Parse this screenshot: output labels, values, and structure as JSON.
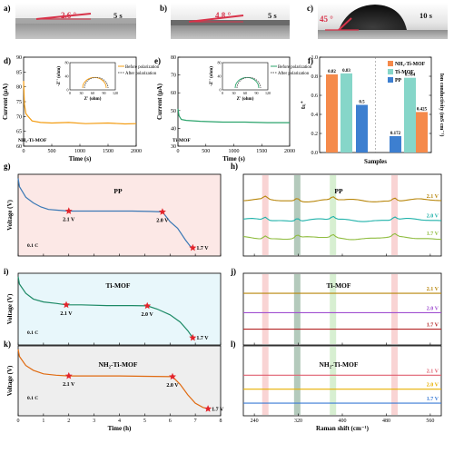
{
  "panels": {
    "a": {
      "label": "a)",
      "angle": "2.6 °",
      "time": "5 s"
    },
    "b": {
      "label": "b)",
      "angle": "4.8 °",
      "time": "5 s"
    },
    "c": {
      "label": "c)",
      "angle": "45 °",
      "time": "10 s"
    },
    "d": {
      "label": "d)",
      "tag": "NH₂-Ti-MOF"
    },
    "e": {
      "label": "e)",
      "tag": "Ti-MOF"
    },
    "f": {
      "label": "f)"
    },
    "g": {
      "label": "g)",
      "title": "PP",
      "note": "0.1 C"
    },
    "h": {
      "label": "h)",
      "title": "PP"
    },
    "i": {
      "label": "i)",
      "title": "Ti-MOF",
      "note": "0.1 C"
    },
    "j": {
      "label": "j)",
      "title": "Ti-MOF"
    },
    "k": {
      "label": "k)",
      "title": "NH₂-Ti-MOF",
      "note": "0.1 C"
    },
    "l": {
      "label": "l)",
      "title": "NH₂-Ti-MOF"
    }
  },
  "inset_legend": {
    "before": "Before polarization",
    "after": "After polarization",
    "xlabel": "Z' (ohm)",
    "ylabel": "-Z'' (ohm)",
    "xticks": [
      "0",
      "30",
      "60",
      "90",
      "120"
    ],
    "yticks": [
      "0",
      "40",
      "80"
    ]
  },
  "chart_data": [
    {
      "panel": "d",
      "type": "line",
      "xlabel": "Time (s)",
      "ylabel": "Current (µA)",
      "xlim": [
        0,
        2000
      ],
      "ylim": [
        60,
        90
      ],
      "xticks": [
        "0",
        "500",
        "1000",
        "1500",
        "2000"
      ],
      "yticks": [
        "60",
        "65",
        "70",
        "75",
        "80",
        "85",
        "90"
      ],
      "series": [
        {
          "color": "#f39c12",
          "x": [
            0,
            15,
            40,
            80,
            150,
            300,
            500,
            800,
            1100,
            1500,
            1800,
            2000
          ],
          "y": [
            82,
            74,
            71,
            70,
            68.5,
            68,
            67.8,
            68,
            67.6,
            67.8,
            67.5,
            67.6
          ]
        }
      ]
    },
    {
      "panel": "e",
      "type": "line",
      "xlabel": "Time (s)",
      "ylabel": "Current (µA)",
      "xlim": [
        0,
        2000
      ],
      "ylim": [
        30,
        80
      ],
      "xticks": [
        "0",
        "500",
        "1000",
        "1500",
        "2000"
      ],
      "yticks": [
        "30",
        "40",
        "50",
        "60",
        "70",
        "80"
      ],
      "series": [
        {
          "color": "#2aa36b",
          "x": [
            0,
            20,
            60,
            150,
            400,
            800,
            1200,
            1600,
            2000
          ],
          "y": [
            51,
            47,
            45,
            44.5,
            44,
            43.5,
            43.5,
            43.2,
            43.2
          ]
        }
      ]
    },
    {
      "panel": "f",
      "type": "bar",
      "xlabel": "Samples",
      "ylabel": "tₗᵢ⁺",
      "ylabel2": "Ion conductivity (mS cm⁻¹)",
      "ylim": [
        0,
        1.0
      ],
      "yticks": [
        "0.0",
        "0.2",
        "0.4",
        "0.6",
        "0.8",
        "1.0"
      ],
      "legend": [
        "NH₂-Ti-MOF",
        "Ti-MOF",
        "PP"
      ],
      "colors": [
        "#f58a4b",
        "#86d6c9",
        "#3d7fd0"
      ],
      "values": [
        0.82,
        0.83,
        0.5,
        0.172,
        0.784,
        0.425
      ],
      "value_labels": [
        "0.82",
        "0.83",
        "0.5",
        "0.172",
        "0.784",
        "0.425"
      ]
    },
    {
      "panel": "g",
      "type": "line",
      "xlim": [
        0,
        8
      ],
      "ylabel": "Voltage (V)",
      "color": "#3a78b5",
      "x": [
        0,
        0.05,
        0.3,
        0.6,
        0.9,
        1.2,
        1.6,
        2.0,
        2.6,
        3.5,
        4.5,
        5.2,
        5.7,
        5.8,
        6.0,
        6.3,
        6.6,
        6.8,
        6.9
      ],
      "y": [
        0.95,
        0.85,
        0.72,
        0.65,
        0.6,
        0.57,
        0.56,
        0.55,
        0.55,
        0.55,
        0.55,
        0.545,
        0.54,
        0.5,
        0.42,
        0.34,
        0.2,
        0.12,
        0.1
      ],
      "stars": [
        {
          "x": 2.0,
          "y": 0.55,
          "label": "2.1 V"
        },
        {
          "x": 5.7,
          "y": 0.54,
          "label": "2.0 V"
        },
        {
          "x": 6.9,
          "y": 0.1,
          "label": "1.7 V"
        }
      ]
    },
    {
      "panel": "i",
      "type": "line",
      "xlim": [
        0,
        8
      ],
      "ylabel": "Voltage (V)",
      "color": "#1d8a66",
      "x": [
        0,
        0.05,
        0.3,
        0.6,
        1.0,
        1.5,
        1.9,
        2.5,
        3.5,
        4.5,
        5.1,
        5.5,
        6.0,
        6.4,
        6.7,
        6.9
      ],
      "y": [
        0.95,
        0.85,
        0.72,
        0.64,
        0.6,
        0.58,
        0.56,
        0.56,
        0.55,
        0.55,
        0.545,
        0.5,
        0.42,
        0.32,
        0.2,
        0.1
      ],
      "stars": [
        {
          "x": 1.9,
          "y": 0.56,
          "label": "2.1 V"
        },
        {
          "x": 5.1,
          "y": 0.545,
          "label": "2.0 V"
        },
        {
          "x": 6.9,
          "y": 0.1,
          "label": "1.7 V"
        }
      ]
    },
    {
      "panel": "k",
      "type": "line",
      "xlim": [
        0,
        8
      ],
      "ylabel": "Voltage (V)",
      "xlabel": "Time (h)",
      "xticks": [
        "0",
        "1",
        "2",
        "3",
        "4",
        "5",
        "6",
        "7",
        "8"
      ],
      "color": "#e06a10",
      "x": [
        0,
        0.05,
        0.3,
        0.6,
        1.0,
        1.5,
        2.0,
        3.0,
        4.0,
        5.0,
        6.1,
        6.4,
        6.7,
        7.0,
        7.3,
        7.5
      ],
      "y": [
        0.95,
        0.85,
        0.72,
        0.65,
        0.6,
        0.58,
        0.57,
        0.57,
        0.57,
        0.565,
        0.56,
        0.45,
        0.3,
        0.18,
        0.12,
        0.1
      ],
      "stars": [
        {
          "x": 2.0,
          "y": 0.57,
          "label": "2.1 V"
        },
        {
          "x": 6.1,
          "y": 0.56,
          "label": "2.0 V"
        },
        {
          "x": 7.5,
          "y": 0.1,
          "label": "1.7 V"
        }
      ]
    },
    {
      "panel": "h",
      "type": "line",
      "xlim": [
        220,
        580
      ],
      "series": [
        {
          "name": "2.1 V",
          "color": "#b8860b"
        },
        {
          "name": "2.0 V",
          "color": "#20b2aa"
        },
        {
          "name": "1.7 V",
          "color": "#8fbc3f"
        }
      ],
      "bands": [
        {
          "x": 260,
          "color": "#f7c6c6"
        },
        {
          "x": 318,
          "color": "#9bb8a5"
        },
        {
          "x": 383,
          "color": "#c9eac2"
        },
        {
          "x": 495,
          "color": "#f7c6c6"
        }
      ]
    },
    {
      "panel": "j",
      "type": "line",
      "xlim": [
        220,
        580
      ],
      "series": [
        {
          "name": "2.1 V",
          "color": "#b8860b"
        },
        {
          "name": "2.0 V",
          "color": "#a04fd0"
        },
        {
          "name": "1.7 V",
          "color": "#b22222"
        }
      ],
      "bands": [
        {
          "x": 260,
          "color": "#f7c6c6"
        },
        {
          "x": 318,
          "color": "#9bb8a5"
        },
        {
          "x": 383,
          "color": "#c9eac2"
        },
        {
          "x": 495,
          "color": "#f7c6c6"
        }
      ]
    },
    {
      "panel": "l",
      "type": "line",
      "xlim": [
        220,
        580
      ],
      "xlabel": "Raman shift (cm⁻¹)",
      "xticks": [
        "240",
        "320",
        "400",
        "480",
        "560"
      ],
      "series": [
        {
          "name": "2.1 V",
          "color": "#e06070"
        },
        {
          "name": "2.0 V",
          "color": "#e8b000"
        },
        {
          "name": "1.7 V",
          "color": "#3a7bd5"
        }
      ],
      "bands": [
        {
          "x": 260,
          "color": "#f7c6c6"
        },
        {
          "x": 318,
          "color": "#9bb8a5"
        },
        {
          "x": 383,
          "color": "#c9eac2"
        },
        {
          "x": 495,
          "color": "#f7c6c6"
        }
      ]
    }
  ]
}
